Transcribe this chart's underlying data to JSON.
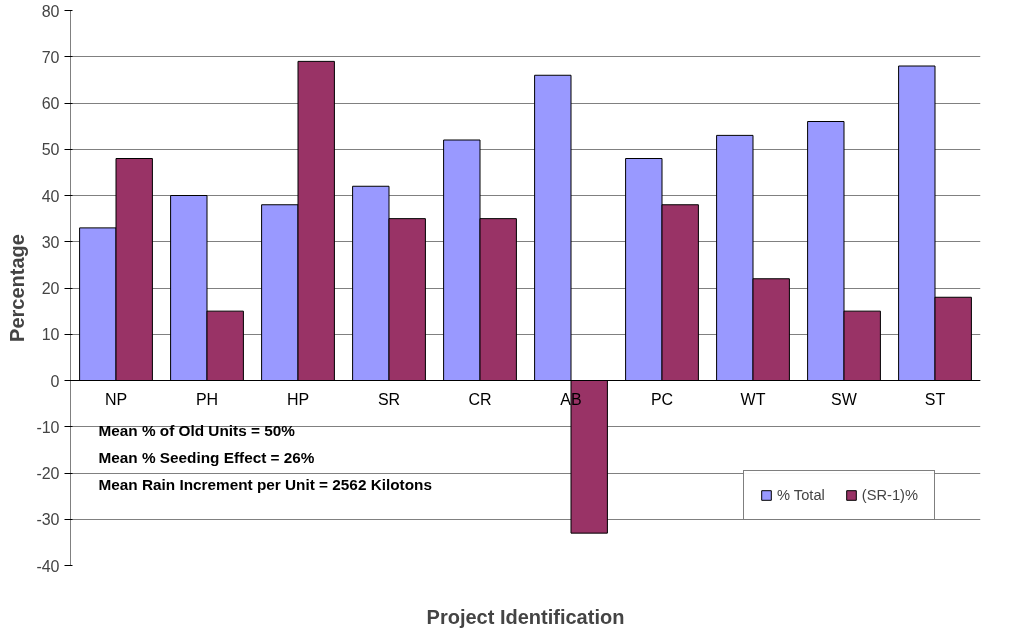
{
  "chart_data": {
    "type": "bar",
    "xlabel": "Project Identification",
    "ylabel": "Percentage",
    "categories": [
      "NP",
      "PH",
      "HP",
      "SR",
      "CR",
      "AB",
      "PC",
      "WT",
      "SW",
      "ST"
    ],
    "series": [
      {
        "name": "% Total",
        "color": "#9999ff",
        "values": [
          33,
          40,
          38,
          42,
          52,
          66,
          48,
          53,
          56,
          68
        ]
      },
      {
        "name": "(SR-1)%",
        "color": "#993366",
        "values": [
          48,
          15,
          69,
          35,
          35,
          -33,
          38,
          22,
          15,
          18
        ]
      }
    ],
    "ylim": [
      -40,
      80
    ],
    "yticks": [
      -40,
      -30,
      -20,
      -10,
      0,
      10,
      20,
      30,
      40,
      50,
      60,
      70,
      80
    ],
    "grid": "y",
    "legend": "bottom right",
    "annotations": [
      "Mean % of Old Units = 50%",
      "Mean % Seeding Effect = 26%",
      "Mean Rain Increment per Unit = 2562 Kilotons"
    ]
  }
}
